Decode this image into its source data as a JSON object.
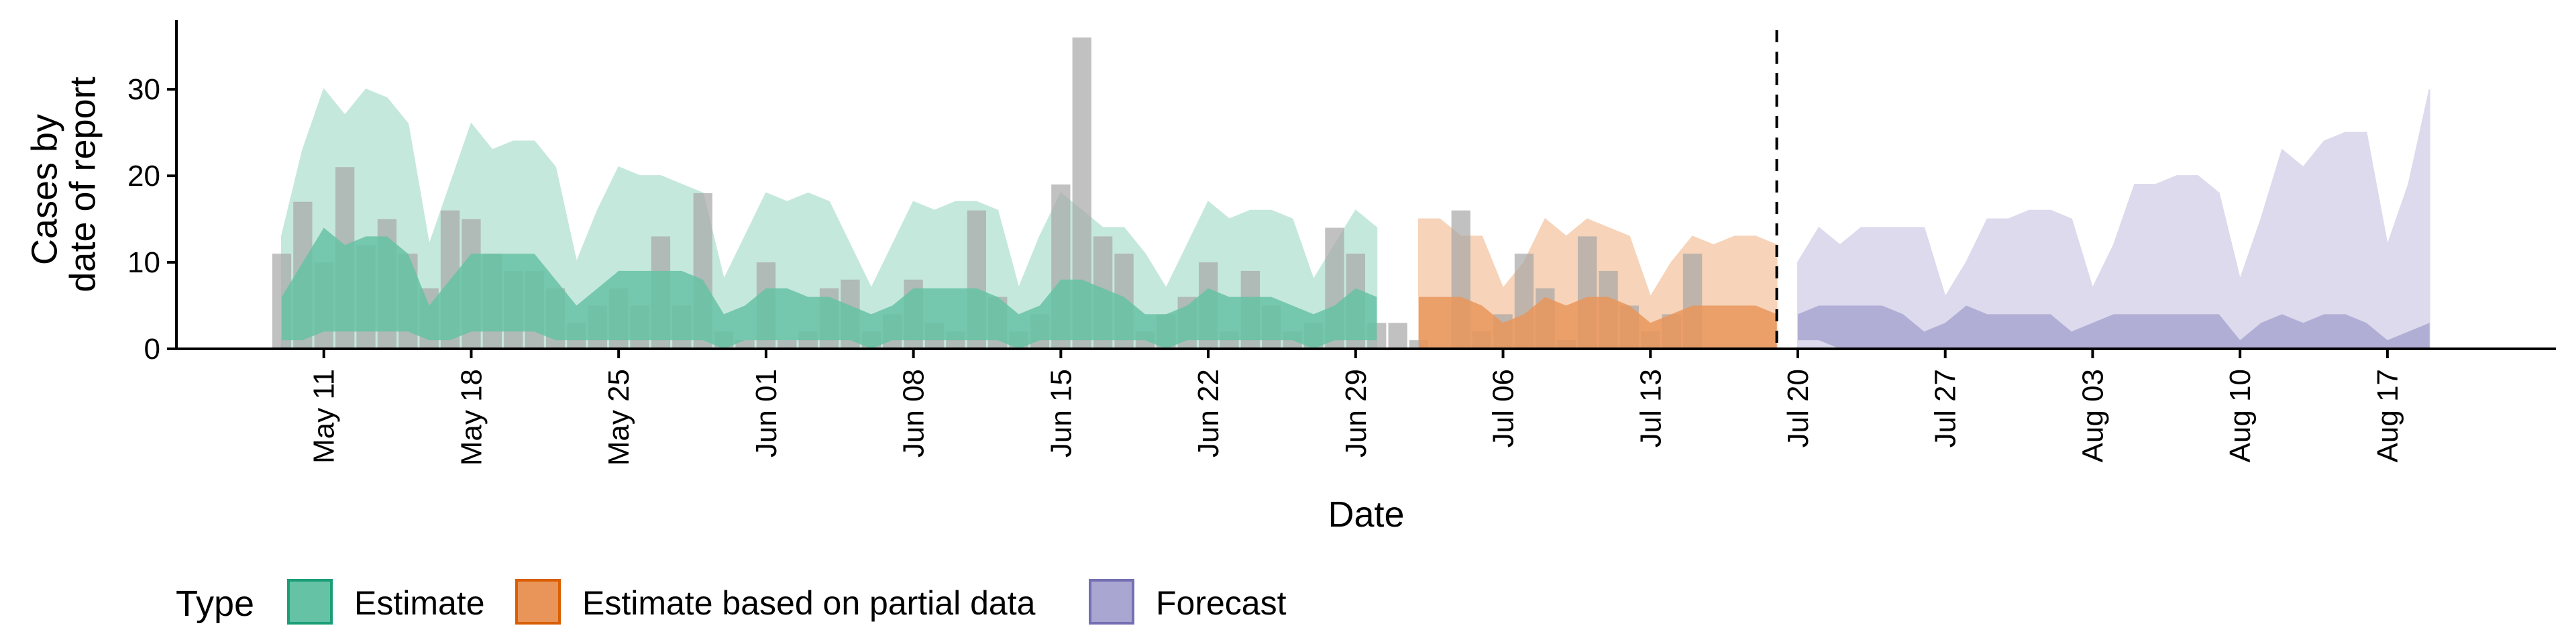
{
  "chart_data": {
    "type": "area",
    "xlabel": "Date",
    "ylabel_lines": [
      "Cases by",
      "date of report"
    ],
    "ylim": [
      0,
      38
    ],
    "yticks": [
      0,
      10,
      20,
      30
    ],
    "xrange": [
      "2020-05-04",
      "2020-08-25"
    ],
    "xticks": [
      {
        "date": "2020-05-11",
        "label": "May 11"
      },
      {
        "date": "2020-05-18",
        "label": "May 18"
      },
      {
        "date": "2020-05-25",
        "label": "May 25"
      },
      {
        "date": "2020-06-01",
        "label": "Jun 01"
      },
      {
        "date": "2020-06-08",
        "label": "Jun 08"
      },
      {
        "date": "2020-06-15",
        "label": "Jun 15"
      },
      {
        "date": "2020-06-22",
        "label": "Jun 22"
      },
      {
        "date": "2020-06-29",
        "label": "Jun 29"
      },
      {
        "date": "2020-07-06",
        "label": "Jul 06"
      },
      {
        "date": "2020-07-13",
        "label": "Jul 13"
      },
      {
        "date": "2020-07-20",
        "label": "Jul 20"
      },
      {
        "date": "2020-07-27",
        "label": "Jul 27"
      },
      {
        "date": "2020-08-03",
        "label": "Aug 03"
      },
      {
        "date": "2020-08-10",
        "label": "Aug 10"
      },
      {
        "date": "2020-08-17",
        "label": "Aug 17"
      }
    ],
    "forecast_line_date": "2020-07-19",
    "legend": {
      "title": "Type",
      "placement": "bottom",
      "entries": [
        {
          "label": "Estimate",
          "fill": "#66C2A5",
          "stroke": "#1B9E77"
        },
        {
          "label": "Estimate based on partial data",
          "fill": "#E9955A",
          "stroke": "#D95F02"
        },
        {
          "label": "Forecast",
          "fill": "#A9A6D2",
          "stroke": "#7570B3"
        }
      ]
    },
    "colors": {
      "bar": "#A6A6A6",
      "estimate_outer": "#C5E8DC",
      "estimate_inner": "#66C2A5",
      "partial_outer": "#F6D3B9",
      "partial_inner": "#E9955A",
      "forecast_outer": "#DCDAEC",
      "forecast_inner": "#A9A6D2",
      "vline": "#000000"
    },
    "reported_cases": {
      "start": "2020-05-09",
      "values": [
        11,
        17,
        10,
        21,
        12,
        15,
        11,
        7,
        16,
        15,
        11,
        9,
        9,
        7,
        3,
        5,
        7,
        5,
        13,
        5,
        18,
        2,
        1,
        10,
        1,
        2,
        7,
        8,
        2,
        4,
        8,
        3,
        2,
        16,
        6,
        2,
        4,
        19,
        36,
        13,
        11,
        2,
        4,
        6,
        10,
        2,
        9,
        5,
        2,
        3,
        14,
        11,
        3,
        3,
        1,
        0,
        16,
        2,
        4,
        11,
        7,
        1,
        13,
        9,
        5,
        2,
        4,
        11
      ]
    },
    "bands": [
      {
        "name": "Estimate",
        "start": "2020-05-09",
        "outer_upper": [
          13,
          23,
          30,
          27,
          30,
          29,
          26,
          12,
          19,
          26,
          23,
          24,
          24,
          21,
          10,
          16,
          21,
          20,
          20,
          19,
          18,
          8,
          13,
          18,
          17,
          18,
          17,
          12,
          7,
          12,
          17,
          16,
          17,
          17,
          16,
          7,
          13,
          18,
          16,
          14,
          14,
          11,
          7,
          12,
          17,
          15,
          16,
          16,
          15,
          8,
          12,
          16,
          14
        ],
        "outer_lower": [
          0,
          0,
          0,
          0,
          0,
          0,
          0,
          0,
          0,
          0,
          0,
          0,
          0,
          0,
          0,
          0,
          0,
          0,
          0,
          0,
          0,
          0,
          0,
          0,
          0,
          0,
          0,
          0,
          0,
          0,
          0,
          0,
          0,
          0,
          0,
          0,
          0,
          0,
          0,
          0,
          0,
          0,
          0,
          0,
          0,
          0,
          0,
          0,
          0,
          0,
          0,
          0,
          0
        ],
        "inner_upper": [
          6,
          10,
          14,
          12,
          13,
          13,
          11,
          5,
          8,
          11,
          11,
          11,
          11,
          8,
          5,
          7,
          9,
          9,
          9,
          9,
          8,
          4,
          5,
          7,
          7,
          6,
          6,
          5,
          4,
          5,
          7,
          7,
          7,
          7,
          6,
          4,
          5,
          8,
          8,
          7,
          6,
          4,
          4,
          5,
          7,
          6,
          6,
          6,
          5,
          4,
          5,
          7,
          6
        ],
        "inner_lower": [
          1,
          1,
          2,
          2,
          2,
          2,
          2,
          1,
          1,
          2,
          2,
          2,
          2,
          1,
          1,
          1,
          1,
          1,
          1,
          1,
          1,
          0,
          1,
          1,
          1,
          1,
          1,
          1,
          0,
          1,
          1,
          1,
          1,
          1,
          1,
          0,
          1,
          1,
          1,
          1,
          1,
          1,
          0,
          1,
          1,
          1,
          1,
          1,
          1,
          0,
          1,
          1,
          1
        ]
      },
      {
        "name": "Estimate based on partial data",
        "start": "2020-07-02",
        "outer_upper": [
          15,
          15,
          13,
          13,
          7,
          10,
          15,
          13,
          15,
          14,
          13,
          6,
          10,
          13,
          12,
          13,
          13,
          12
        ],
        "outer_lower": [
          0,
          0,
          0,
          0,
          0,
          0,
          0,
          0,
          0,
          0,
          0,
          0,
          0,
          0,
          0,
          0,
          0,
          0
        ],
        "inner_upper": [
          6,
          6,
          6,
          5,
          3,
          4,
          6,
          5,
          6,
          6,
          5,
          3,
          4,
          5,
          5,
          5,
          5,
          4
        ],
        "inner_lower": [
          0,
          0,
          0,
          0,
          0,
          0,
          0,
          0,
          0,
          0,
          0,
          0,
          0,
          0,
          0,
          0,
          0,
          0
        ]
      },
      {
        "name": "Forecast",
        "start": "2020-07-20",
        "outer_upper": [
          10,
          14,
          12,
          14,
          14,
          14,
          14,
          6,
          10,
          15,
          15,
          16,
          16,
          15,
          7,
          12,
          19,
          19,
          20,
          20,
          18,
          8,
          15,
          23,
          21,
          24,
          25,
          25,
          12,
          19,
          30
        ],
        "outer_lower": [
          0,
          0,
          0,
          0,
          0,
          0,
          0,
          0,
          0,
          0,
          0,
          0,
          0,
          0,
          0,
          0,
          0,
          0,
          0,
          0,
          0,
          0,
          0,
          0,
          0,
          0,
          0,
          0,
          0,
          0,
          0
        ],
        "inner_upper": [
          4,
          5,
          5,
          5,
          5,
          4,
          2,
          3,
          5,
          4,
          4,
          4,
          4,
          2,
          3,
          4,
          4,
          4,
          4,
          4,
          4,
          1,
          3,
          4,
          3,
          4,
          4,
          3,
          1,
          2,
          3
        ],
        "inner_lower": [
          1,
          1,
          0,
          0,
          0,
          0,
          0,
          0,
          0,
          0,
          0,
          0,
          0,
          0,
          0,
          0,
          0,
          0,
          0,
          0,
          0,
          0,
          0,
          0,
          0,
          0,
          0,
          0,
          0,
          0,
          0
        ]
      }
    ]
  }
}
